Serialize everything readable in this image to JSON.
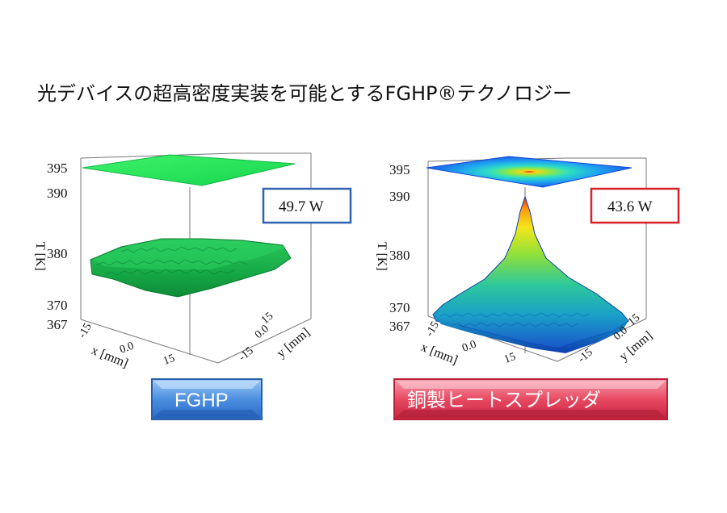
{
  "title": "光デバイスの超高密度実装を可能とするFGHP®テクノロジー",
  "colors": {
    "blue_box": "#2f62b0",
    "red_box": "#d8202a",
    "green_surface": "#19e35a",
    "dark_green": "#0c8a36"
  },
  "chart_data": [
    {
      "type": "surface3d",
      "name": "FGHP",
      "label": "FGHP",
      "power_label": "49.7 W",
      "power_W": 49.7,
      "zlabel": "T [K]",
      "xlabel": "x [mm]",
      "ylabel": "y [mm]",
      "zticks": [
        "367",
        "370",
        "380",
        "390",
        "395"
      ],
      "xticks": [
        "-15",
        "0.0",
        "15"
      ],
      "yticks": [
        "15",
        "0.0",
        "-15"
      ],
      "zlim": [
        367,
        395
      ],
      "surface_temperature_K": {
        "min": 376,
        "max": 379,
        "peak": 379
      },
      "projection_top_K": 395,
      "colormap": "uniform green"
    },
    {
      "type": "surface3d",
      "name": "銅製ヒートスプレッダ",
      "label": "銅製ヒートスプレッダ",
      "power_label": "43.6 W",
      "power_W": 43.6,
      "zlabel": "T [K]",
      "xlabel": "x [mm]",
      "ylabel": "y [mm]",
      "zticks": [
        "367",
        "370",
        "380",
        "390",
        "395"
      ],
      "xticks": [
        "-15",
        "0.0",
        "15"
      ],
      "yticks": [
        "15",
        "0.0",
        "-15"
      ],
      "zlim": [
        367,
        395
      ],
      "surface_temperature_K": {
        "min": 368,
        "max": 391,
        "peak": 391
      },
      "projection_top_K": 395,
      "colormap": "jet (blue to red), peaked at center"
    }
  ]
}
